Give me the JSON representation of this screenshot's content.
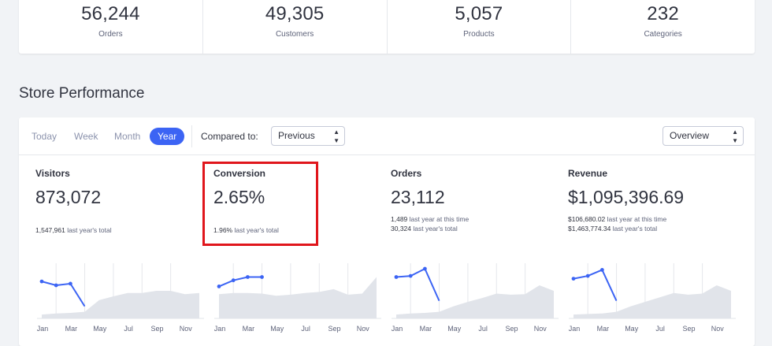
{
  "summary": [
    {
      "value": "56,244",
      "label": "Orders"
    },
    {
      "value": "49,305",
      "label": "Customers"
    },
    {
      "value": "5,057",
      "label": "Products"
    },
    {
      "value": "232",
      "label": "Categories"
    }
  ],
  "section_title": "Store Performance",
  "toolbar": {
    "tabs": [
      "Today",
      "Week",
      "Month",
      "Year"
    ],
    "active_tab": "Year",
    "compare_label": "Compared to:",
    "compare_value": "Previous",
    "view_value": "Overview"
  },
  "metrics": [
    {
      "title": "Visitors",
      "value": "873,072",
      "sub1_num": "1,547,961",
      "sub1_text": " last year's total",
      "sub2_num": "",
      "sub2_text": ""
    },
    {
      "title": "Conversion",
      "value": "2.65%",
      "sub1_num": "1.96%",
      "sub1_text": " last year's total",
      "sub2_num": "",
      "sub2_text": ""
    },
    {
      "title": "Orders",
      "value": "23,112",
      "sub1_num": "1,489",
      "sub1_text": " last year at this time",
      "sub2_num": "30,324",
      "sub2_text": " last year's total"
    },
    {
      "title": "Revenue",
      "value": "$1,095,396.69",
      "sub1_num": "$106,680.02",
      "sub1_text": " last year at this time",
      "sub2_num": "$1,463,774.34",
      "sub2_text": " last year's total"
    }
  ],
  "colors": {
    "accent": "#3c64f4",
    "area": "#e1e4ea",
    "highlight": "#e0161c"
  },
  "chart_data": [
    {
      "type": "line",
      "name": "Visitors",
      "x": [
        "Jan",
        "Feb",
        "Mar",
        "Apr",
        "May",
        "Jun",
        "Jul",
        "Aug",
        "Sep",
        "Oct",
        "Nov",
        "Dec"
      ],
      "ticks": [
        "Jan",
        "Mar",
        "May",
        "Jul",
        "Sep",
        "Nov"
      ],
      "current": [
        0.67,
        0.6,
        0.63,
        0.22
      ],
      "previous": [
        0.07,
        0.09,
        0.1,
        0.12,
        0.33,
        0.4,
        0.46,
        0.46,
        0.5,
        0.5,
        0.44,
        0.46
      ]
    },
    {
      "type": "line",
      "name": "Conversion",
      "x": [
        "Jan",
        "Feb",
        "Mar",
        "Apr",
        "May",
        "Jun",
        "Jul",
        "Aug",
        "Sep",
        "Oct",
        "Nov",
        "Dec"
      ],
      "ticks": [
        "Jan",
        "Mar",
        "May",
        "Jul",
        "Sep",
        "Nov"
      ],
      "current": [
        0.58,
        0.69,
        0.75,
        0.75
      ],
      "previous": [
        0.44,
        0.46,
        0.46,
        0.45,
        0.41,
        0.43,
        0.46,
        0.48,
        0.53,
        0.43,
        0.45,
        0.75
      ]
    },
    {
      "type": "line",
      "name": "Orders",
      "x": [
        "Jan",
        "Feb",
        "Mar",
        "Apr",
        "May",
        "Jun",
        "Jul",
        "Aug",
        "Sep",
        "Oct",
        "Nov",
        "Dec"
      ],
      "ticks": [
        "Jan",
        "Mar",
        "May",
        "Jul",
        "Sep",
        "Nov"
      ],
      "current": [
        0.75,
        0.77,
        0.9,
        0.32
      ],
      "previous": [
        0.07,
        0.09,
        0.1,
        0.12,
        0.22,
        0.3,
        0.37,
        0.45,
        0.43,
        0.44,
        0.6,
        0.5
      ]
    },
    {
      "type": "line",
      "name": "Revenue",
      "x": [
        "Jan",
        "Feb",
        "Mar",
        "Apr",
        "May",
        "Jun",
        "Jul",
        "Aug",
        "Sep",
        "Oct",
        "Nov",
        "Dec"
      ],
      "ticks": [
        "Jan",
        "Mar",
        "May",
        "Jul",
        "Sep",
        "Nov"
      ],
      "current": [
        0.72,
        0.77,
        0.88,
        0.32
      ],
      "previous": [
        0.07,
        0.08,
        0.09,
        0.12,
        0.22,
        0.3,
        0.38,
        0.46,
        0.43,
        0.45,
        0.6,
        0.5
      ]
    }
  ]
}
